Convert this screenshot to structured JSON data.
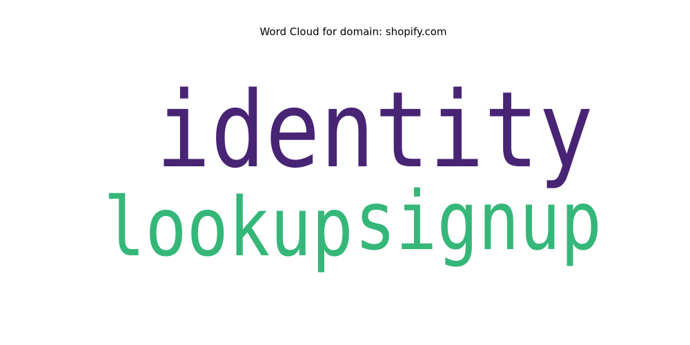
{
  "title": "Word Cloud for domain: shopify.com",
  "chart_data": {
    "type": "wordcloud",
    "title": "Word Cloud for domain: shopify.com",
    "words": [
      {
        "text": "identity",
        "weight": 1.0,
        "color": "#482475"
      },
      {
        "text": "lookup",
        "weight": 0.78,
        "color": "#35b779"
      },
      {
        "text": "signup",
        "weight": 0.78,
        "color": "#35b779"
      }
    ]
  }
}
